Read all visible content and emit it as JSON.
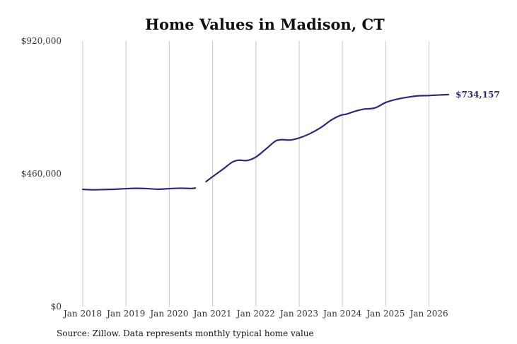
{
  "chart_data": {
    "type": "line",
    "title": "Home Values in Madison, CT",
    "xlabel": "",
    "ylabel": "",
    "source": "Source: Zillow. Data represents monthly typical home value",
    "x_tick_labels": [
      "Jan 2018",
      "Jan 2019",
      "Jan 2020",
      "Jan 2021",
      "Jan 2022",
      "Jan 2023",
      "Jan 2024",
      "Jan 2025",
      "Jan 2026"
    ],
    "x_ticks": [
      2018.0,
      2019.0,
      2020.0,
      2021.0,
      2022.0,
      2023.0,
      2024.0,
      2025.0,
      2026.0
    ],
    "y_tick_labels": [
      "$0",
      "$460,000",
      "$920,000"
    ],
    "y_ticks": [
      0,
      460000,
      920000
    ],
    "ylim": [
      0,
      920000
    ],
    "grid": "vertical",
    "line_color": "#2d2a7a",
    "end_label": "$734,157",
    "series": [
      {
        "segments": [
          [
            [
              2018.0,
              406000
            ],
            [
              2018.25,
              404500
            ],
            [
              2018.5,
              405500
            ],
            [
              2018.75,
              406500
            ],
            [
              2019.0,
              408500
            ],
            [
              2019.25,
              409500
            ],
            [
              2019.5,
              408500
            ],
            [
              2019.75,
              406500
            ],
            [
              2020.0,
              408500
            ],
            [
              2020.25,
              410000
            ],
            [
              2020.5,
              409000
            ],
            [
              2020.6,
              410500
            ]
          ],
          [
            [
              2020.85,
              433000
            ],
            [
              2021.0,
              450000
            ],
            [
              2021.25,
              477000
            ],
            [
              2021.45,
              500000
            ],
            [
              2021.6,
              507000
            ],
            [
              2021.8,
              506000
            ],
            [
              2022.0,
              518000
            ],
            [
              2022.25,
              548000
            ],
            [
              2022.45,
              573000
            ],
            [
              2022.6,
              578000
            ],
            [
              2022.8,
              577000
            ],
            [
              2023.0,
              584000
            ],
            [
              2023.25,
              599000
            ],
            [
              2023.5,
              620000
            ],
            [
              2023.75,
              647000
            ],
            [
              2023.95,
              662000
            ],
            [
              2024.1,
              667000
            ],
            [
              2024.3,
              677000
            ],
            [
              2024.5,
              684000
            ],
            [
              2024.75,
              688000
            ],
            [
              2025.0,
              707000
            ],
            [
              2025.25,
              718000
            ],
            [
              2025.5,
              725000
            ],
            [
              2025.75,
              730000
            ],
            [
              2026.0,
              731000
            ],
            [
              2026.25,
              733000
            ],
            [
              2026.45,
              734157
            ]
          ]
        ]
      }
    ]
  }
}
